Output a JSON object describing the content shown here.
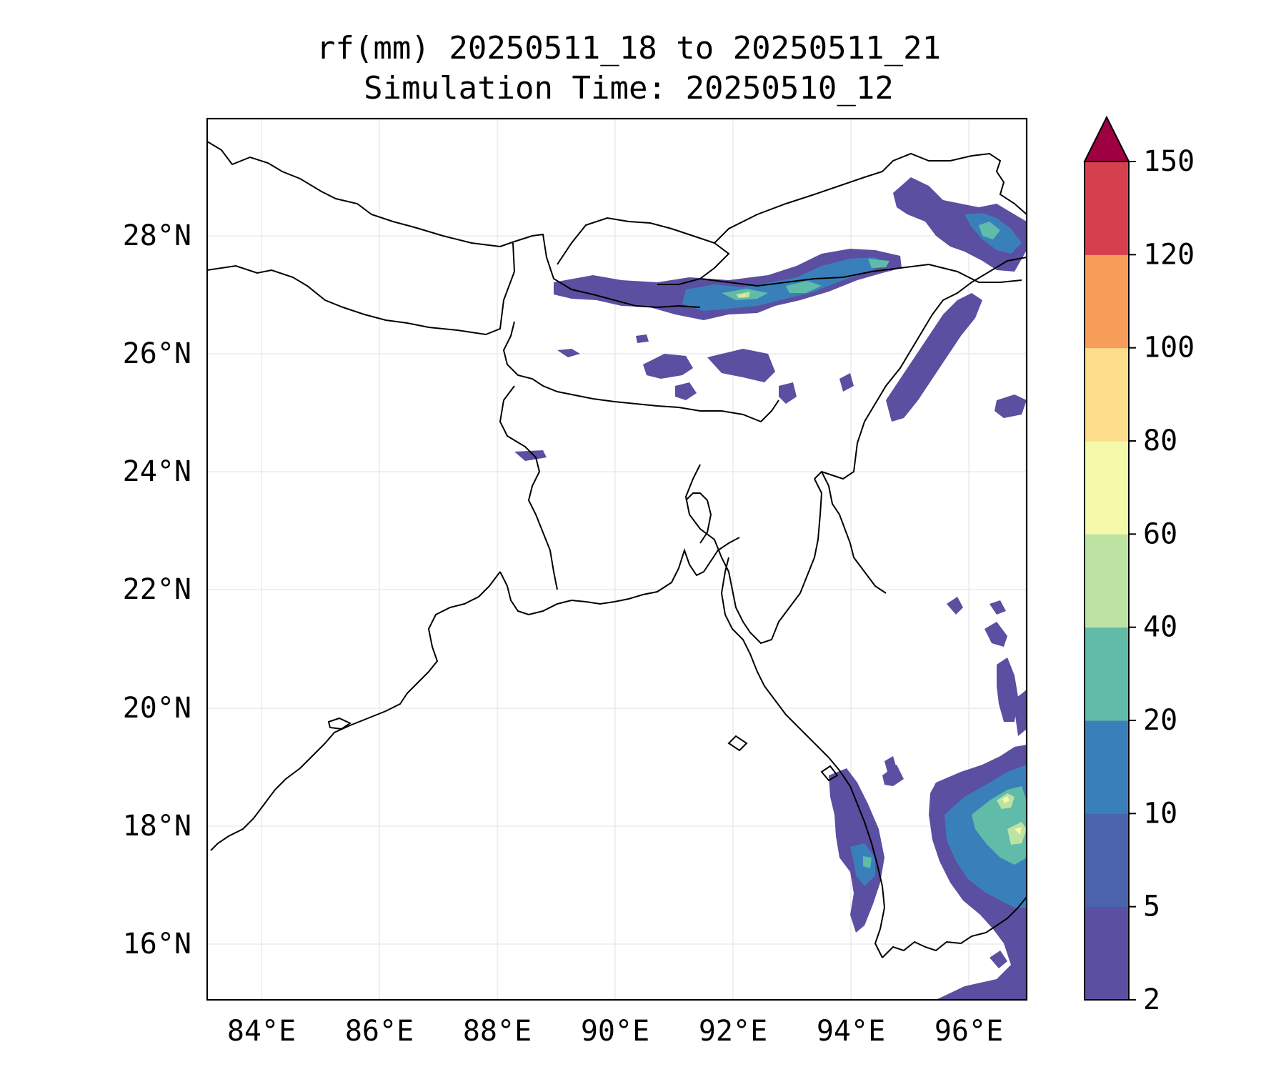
{
  "title_line1": "rf(mm) 20250511_18 to 20250511_21",
  "title_line2": "Simulation Time: 20250510_12",
  "map": {
    "lon_range": [
      83.1,
      97.0
    ],
    "lat_range": [
      15.0,
      30.0
    ],
    "lon_ticks": [
      "84°E",
      "86°E",
      "88°E",
      "90°E",
      "92°E",
      "94°E",
      "96°E"
    ],
    "lat_ticks": [
      "16°N",
      "18°N",
      "20°N",
      "22°N",
      "24°N",
      "26°N",
      "28°N"
    ],
    "gridlines": true
  },
  "colorbar": {
    "levels": [
      "2",
      "5",
      "10",
      "20",
      "40",
      "60",
      "80",
      "100",
      "120",
      "150"
    ],
    "colors": [
      "#5a4fa0",
      "#4a63ac",
      "#3980bb",
      "#61bba9",
      "#bde3a3",
      "#f4faaa",
      "#fbdd8c",
      "#f89c59",
      "#d6404e"
    ],
    "extend_color": "#9e0142",
    "extend": "max"
  }
}
